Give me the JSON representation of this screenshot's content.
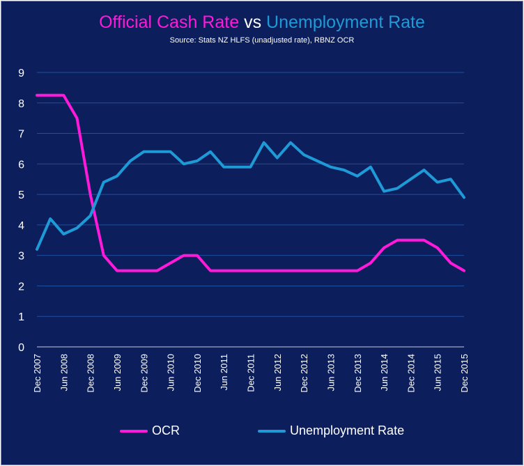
{
  "colors": {
    "background": "#0c1f5c",
    "ocr": "#ff1ad9",
    "unemployment": "#1e9ad6",
    "grid": "#1e4fa0",
    "text": "#ffffff"
  },
  "title": {
    "part1": "Official Cash Rate",
    "part2": "vs",
    "part3": "Unemployment Rate"
  },
  "subtitle": "Source: Stats NZ HLFS (unadjusted rate), RBNZ OCR",
  "chart_data": {
    "type": "line",
    "x": [
      "Dec 2007",
      "Mar 2008",
      "Jun 2008",
      "Sep 2008",
      "Dec 2008",
      "Mar 2009",
      "Jun 2009",
      "Sep 2009",
      "Dec 2009",
      "Mar 2010",
      "Jun 2010",
      "Sep 2010",
      "Dec 2010",
      "Mar 2011",
      "Jun 2011",
      "Sep 2011",
      "Dec 2011",
      "Mar 2012",
      "Jun 2012",
      "Sep 2012",
      "Dec 2012",
      "Mar 2013",
      "Jun 2013",
      "Sep 2013",
      "Dec 2013",
      "Mar 2014",
      "Jun 2014",
      "Sep 2014",
      "Dec 2014",
      "Mar 2015",
      "Jun 2015",
      "Sep 2015",
      "Dec 2015"
    ],
    "x_tick_labels": [
      "Dec 2007",
      "Jun 2008",
      "Dec 2008",
      "Jun 2009",
      "Dec 2009",
      "Jun 2010",
      "Dec 2010",
      "Jun 2011",
      "Dec 2011",
      "Jun 2012",
      "Dec 2012",
      "Jun 2013",
      "Dec 2013",
      "Jun 2014",
      "Dec 2014",
      "Jun 2015",
      "Dec 2015"
    ],
    "ylim": [
      0,
      9
    ],
    "y_ticks": [
      0,
      1,
      2,
      3,
      4,
      5,
      6,
      7,
      8,
      9
    ],
    "grid": true,
    "legend_position": "bottom",
    "series": [
      {
        "name": "OCR",
        "color_key": "ocr",
        "values": [
          8.25,
          8.25,
          8.25,
          7.5,
          5.0,
          3.0,
          2.5,
          2.5,
          2.5,
          2.5,
          2.75,
          3.0,
          3.0,
          2.5,
          2.5,
          2.5,
          2.5,
          2.5,
          2.5,
          2.5,
          2.5,
          2.5,
          2.5,
          2.5,
          2.5,
          2.75,
          3.25,
          3.5,
          3.5,
          3.5,
          3.25,
          2.75,
          2.5
        ]
      },
      {
        "name": "Unemployment Rate",
        "color_key": "unemployment",
        "values": [
          3.2,
          4.2,
          3.7,
          3.9,
          4.3,
          5.4,
          5.6,
          6.1,
          6.4,
          6.4,
          6.4,
          6.0,
          6.1,
          6.4,
          5.9,
          5.9,
          5.9,
          6.7,
          6.2,
          6.7,
          6.3,
          6.1,
          5.9,
          5.8,
          5.6,
          5.9,
          5.1,
          5.2,
          5.5,
          5.8,
          5.4,
          5.5,
          4.9
        ]
      }
    ]
  }
}
